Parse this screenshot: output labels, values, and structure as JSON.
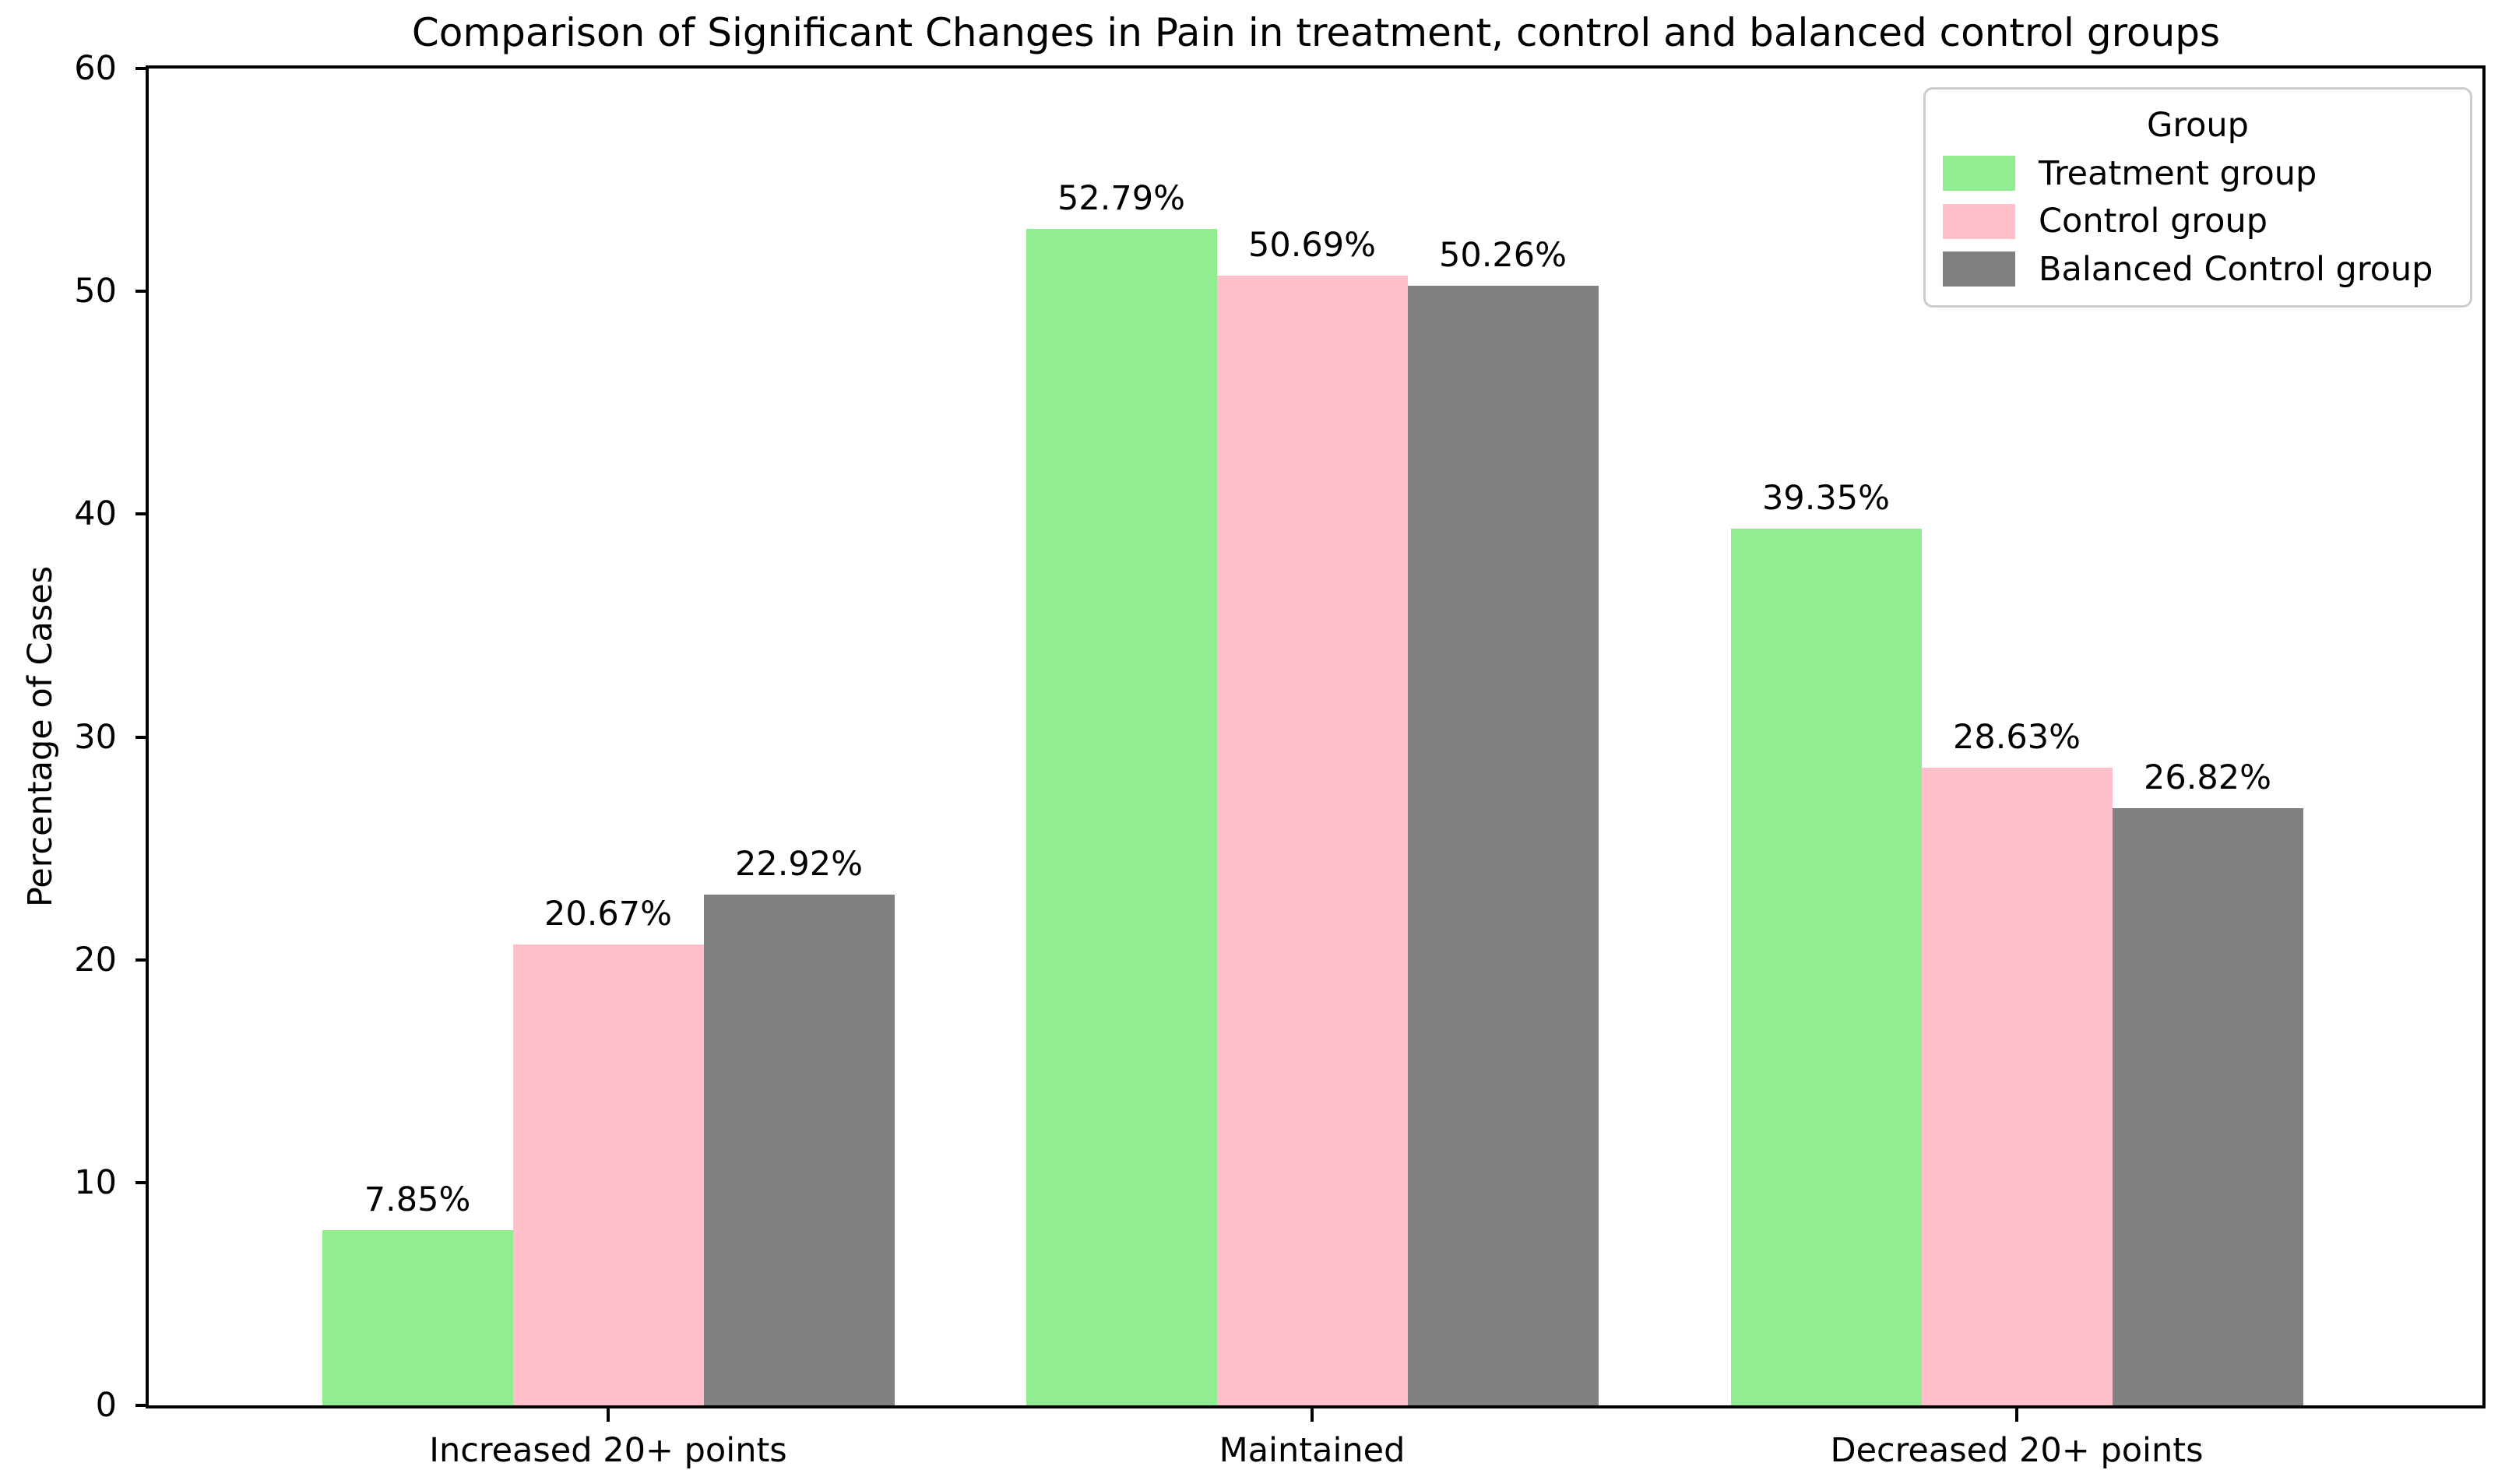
{
  "chart_data": {
    "type": "bar",
    "title": "Comparison of Significant Changes in Pain in treatment, control and balanced control groups",
    "xlabel": "",
    "ylabel": "Percentage of Cases",
    "categories": [
      "Increased 20+ points",
      "Maintained",
      "Decreased 20+ points"
    ],
    "series": [
      {
        "name": "Treatment group",
        "color": "#90EE90",
        "values": [
          7.85,
          52.79,
          39.35
        ],
        "value_labels": [
          "7.85%",
          "52.79%",
          "39.35%"
        ]
      },
      {
        "name": "Control group",
        "color": "#FFC0CB",
        "values": [
          20.67,
          50.69,
          28.63
        ],
        "value_labels": [
          "20.67%",
          "50.69%",
          "28.63%"
        ]
      },
      {
        "name": "Balanced Control group",
        "color": "#808080",
        "values": [
          22.92,
          50.26,
          26.82
        ],
        "value_labels": [
          "22.92%",
          "50.26%",
          "26.82%"
        ]
      }
    ],
    "ylim": [
      0,
      60
    ],
    "yticks": [
      0,
      10,
      20,
      30,
      40,
      50,
      60
    ],
    "grid": false,
    "legend": {
      "title": "Group",
      "position": "upper right"
    },
    "axis_color": "#000000",
    "background_color": "#ffffff"
  }
}
